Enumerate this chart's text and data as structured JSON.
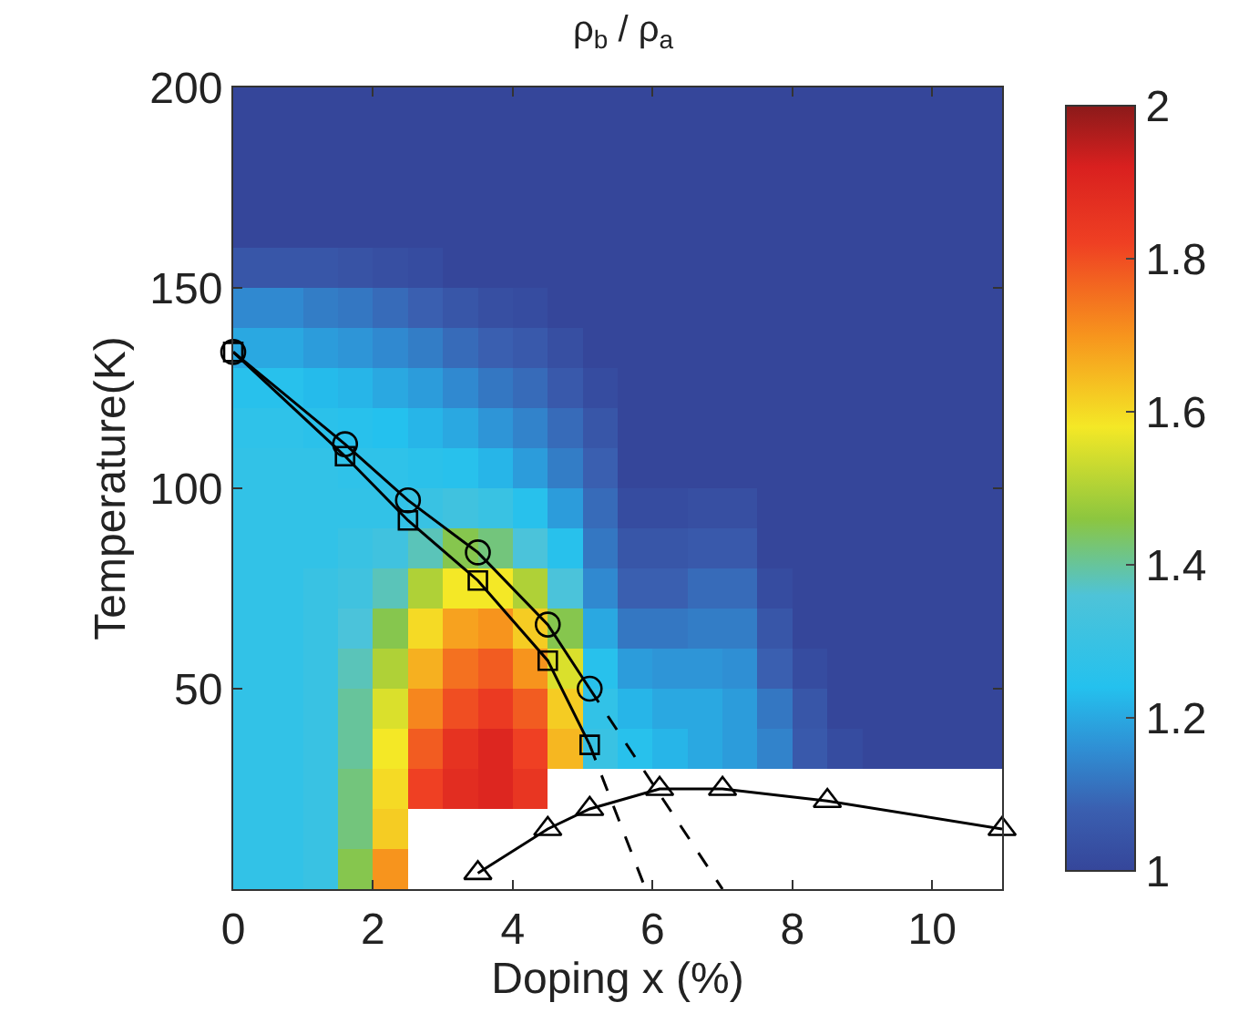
{
  "chart_data": {
    "type": "heatmap",
    "title": "ρ$_{b}$ / ρ$_{a}$",
    "xlabel": "Doping x (%)",
    "ylabel": "Temperature(K)",
    "xlim": [
      0,
      11
    ],
    "ylim": [
      0,
      200
    ],
    "xticks": [
      0,
      2,
      4,
      6,
      8,
      10
    ],
    "yticks": [
      50,
      100,
      150,
      200
    ],
    "clim": [
      1,
      2
    ],
    "cticks": [
      1,
      1.2,
      1.4,
      1.6,
      1.8,
      2
    ],
    "cells": [
      [
        1,
        1,
        1,
        1,
        1,
        1,
        1,
        1,
        1,
        1,
        1,
        1,
        1,
        1,
        1,
        1,
        1,
        1,
        1,
        1,
        1,
        1
      ],
      [
        1,
        1,
        1,
        1,
        1,
        1,
        1,
        1,
        1,
        1,
        1,
        1,
        1,
        1,
        1,
        1,
        1,
        1,
        1,
        1,
        1,
        1
      ],
      [
        1,
        1,
        1,
        1,
        1,
        1,
        1,
        1,
        1,
        1,
        1,
        1,
        1,
        1,
        1,
        1,
        1,
        1,
        1,
        1,
        1,
        1
      ],
      [
        1,
        1,
        1,
        1,
        1,
        1,
        1,
        1,
        1,
        1,
        1,
        1,
        1,
        1,
        1,
        1,
        1,
        1,
        1,
        1,
        1,
        1
      ],
      [
        1.05,
        1.05,
        1.05,
        1.04,
        1.03,
        1.02,
        1,
        1,
        1,
        1,
        1,
        1,
        1,
        1,
        1,
        1,
        1,
        1,
        1,
        1,
        1,
        1
      ],
      [
        1.15,
        1.15,
        1.13,
        1.12,
        1.1,
        1.08,
        1.05,
        1.03,
        1.02,
        1,
        1,
        1,
        1,
        1,
        1,
        1,
        1,
        1,
        1,
        1,
        1,
        1
      ],
      [
        1.2,
        1.2,
        1.18,
        1.17,
        1.15,
        1.13,
        1.1,
        1.08,
        1.06,
        1.03,
        1,
        1,
        1,
        1,
        1,
        1,
        1,
        1,
        1,
        1,
        1,
        1
      ],
      [
        1.25,
        1.25,
        1.23,
        1.22,
        1.2,
        1.18,
        1.15,
        1.12,
        1.1,
        1.06,
        1.02,
        1,
        1,
        1,
        1,
        1,
        1,
        1,
        1,
        1,
        1,
        1
      ],
      [
        1.27,
        1.27,
        1.26,
        1.25,
        1.24,
        1.22,
        1.2,
        1.17,
        1.14,
        1.1,
        1.05,
        1,
        1,
        1,
        1,
        1,
        1,
        1,
        1,
        1,
        1,
        1
      ],
      [
        1.28,
        1.28,
        1.28,
        1.27,
        1.27,
        1.26,
        1.25,
        1.22,
        1.18,
        1.13,
        1.08,
        1,
        1,
        1,
        1,
        1,
        1,
        1,
        1,
        1,
        1,
        1
      ],
      [
        1.28,
        1.28,
        1.28,
        1.28,
        1.28,
        1.3,
        1.32,
        1.3,
        1.25,
        1.18,
        1.1,
        1.02,
        1.02,
        1.03,
        1.03,
        1,
        1,
        1,
        1,
        1,
        1,
        1
      ],
      [
        1.28,
        1.28,
        1.28,
        1.3,
        1.32,
        1.38,
        1.45,
        1.42,
        1.35,
        1.25,
        1.12,
        1.05,
        1.05,
        1.06,
        1.06,
        1,
        1,
        1,
        1,
        1,
        1,
        1
      ],
      [
        1.28,
        1.28,
        1.3,
        1.32,
        1.38,
        1.5,
        1.58,
        1.58,
        1.5,
        1.35,
        1.15,
        1.08,
        1.08,
        1.1,
        1.1,
        1.02,
        1,
        1,
        1,
        1,
        1,
        1
      ],
      [
        1.28,
        1.28,
        1.3,
        1.35,
        1.45,
        1.6,
        1.68,
        1.7,
        1.62,
        1.45,
        1.2,
        1.12,
        1.12,
        1.13,
        1.13,
        1.05,
        1,
        1,
        1,
        1,
        1,
        1
      ],
      [
        1.28,
        1.28,
        1.3,
        1.38,
        1.5,
        1.66,
        1.75,
        1.78,
        1.7,
        1.55,
        1.25,
        1.18,
        1.17,
        1.17,
        1.16,
        1.08,
        1.02,
        1,
        1,
        1,
        1,
        1
      ],
      [
        1.28,
        1.28,
        1.3,
        1.4,
        1.55,
        1.72,
        1.8,
        1.84,
        1.78,
        1.62,
        1.28,
        1.22,
        1.2,
        1.2,
        1.18,
        1.12,
        1.05,
        1,
        1,
        1,
        1,
        1
      ],
      [
        1.28,
        1.28,
        1.3,
        1.4,
        1.58,
        1.78,
        1.86,
        1.9,
        1.82,
        1.65,
        1.3,
        1.25,
        1.22,
        1.2,
        1.18,
        1.14,
        1.06,
        1.02,
        1,
        1,
        1,
        1
      ],
      [
        1.28,
        1.28,
        1.3,
        1.42,
        1.6,
        1.82,
        1.88,
        1.9,
        1.85,
        null,
        null,
        null,
        null,
        null,
        null,
        null,
        null,
        null,
        null,
        null,
        null,
        null
      ],
      [
        1.28,
        1.28,
        1.3,
        1.42,
        1.62,
        null,
        null,
        null,
        null,
        null,
        null,
        null,
        null,
        null,
        null,
        null,
        null,
        null,
        null,
        null,
        null,
        null
      ],
      [
        1.28,
        1.28,
        1.3,
        1.45,
        1.7,
        null,
        null,
        null,
        null,
        null,
        null,
        null,
        null,
        null,
        null,
        null,
        null,
        null,
        null,
        null,
        null,
        null
      ]
    ],
    "series": [
      {
        "type": "line",
        "color": "#000000",
        "marker": "square",
        "line_style": "solid",
        "x": [
          0,
          1.6,
          2.5,
          3.5,
          4.5,
          5.1
        ],
        "values": [
          134,
          108,
          92,
          77,
          57,
          36
        ]
      },
      {
        "type": "line",
        "color": "#000000",
        "marker": "circle",
        "line_style": "solid",
        "x": [
          0,
          1.6,
          2.5,
          3.5,
          4.5,
          5.1
        ],
        "values": [
          134,
          111,
          97,
          84,
          66,
          50
        ]
      },
      {
        "type": "line",
        "color": "#000000",
        "marker": "none",
        "line_style": "dashed",
        "x": [
          5.1,
          7
        ],
        "values": [
          50,
          0
        ]
      },
      {
        "type": "line",
        "color": "#000000",
        "marker": "none",
        "line_style": "dashed",
        "x": [
          5.1,
          5.9
        ],
        "values": [
          36,
          0
        ]
      },
      {
        "type": "line",
        "color": "#000000",
        "marker": "triangle",
        "line_style": "solid",
        "x": [
          3.5,
          4.5,
          5.1,
          6.1,
          7,
          8.5,
          11
        ],
        "values": [
          4,
          15,
          20,
          25,
          25,
          22,
          15
        ]
      }
    ]
  }
}
